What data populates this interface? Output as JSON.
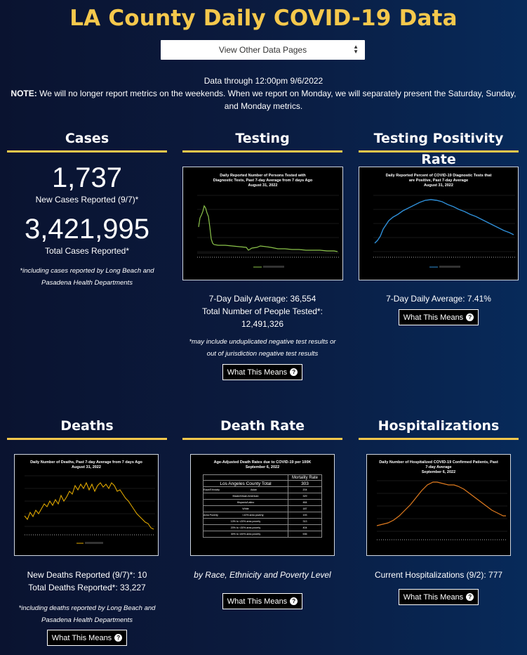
{
  "header": {
    "title": "LA County Daily COVID-19 Data",
    "select_value": "View Other Data Pages",
    "data_through": "Data through 12:00pm 9/6/2022",
    "note_label": "NOTE:",
    "note_text": " We will no longer report metrics on the weekends. When we report on Monday, we will separately present the Saturday, Sunday,",
    "note_text2": "and Monday metrics."
  },
  "cases": {
    "heading": "Cases",
    "new_value": "1,737",
    "new_label": "New Cases Reported (9/7)*",
    "total_value": "3,421,995",
    "total_label": "Total Cases Reported*",
    "footnote": "*including cases reported by Long Beach and Pasadena Health Departments"
  },
  "testing": {
    "heading": "Testing",
    "chart_title": "Daily Reported Number of Persons Tested with Diagnostic Tests, Past 7-day Average from 7 days Ago",
    "chart_date": "August 31, 2022",
    "avg": "7-Day Daily Average: 36,554",
    "total_label": "Total Number of People Tested*:",
    "total_value": "12,491,326",
    "footnote": "*may include unduplicated negative test results or out of jurisdiction negative test results",
    "button": "What This Means"
  },
  "positivity": {
    "heading": "Testing Positivity Rate",
    "chart_title": "Daily Reported Percent of COVID-19 Diagnostic Tests that are Positive, Past 7-day Average",
    "chart_date": "August 31, 2022",
    "avg": "7-Day Daily Average: 7.41%",
    "button": "What This Means"
  },
  "deaths": {
    "heading": "Deaths",
    "chart_title": "Daily Number of Deaths, Past 7-day Average from 7 days Ago",
    "chart_date": "August 31, 2022",
    "new": "New Deaths Reported (9/7)*: 10",
    "total": "Total Deaths Reported*: 33,227",
    "footnote": "*including deaths reported by Long Beach and Pasadena Health Departments",
    "button": "What This Means"
  },
  "deathrate": {
    "heading": "Death Rate",
    "chart_title": "Age-Adjusted Death Rates due to COVID-19 per 100K",
    "chart_date": "September 6, 2022",
    "table_header": "Mortality Rate",
    "total_label": "Los Angeles County Total",
    "total_value": "303",
    "group1": "Race/Ethnicity",
    "group2": "Area Poverty",
    "rows": [
      {
        "label": "Asian",
        "value": "204"
      },
      {
        "label": "Black/African American",
        "value": "329"
      },
      {
        "label": "Hispanic/Latino",
        "value": "464"
      },
      {
        "label": "White",
        "value": "187"
      },
      {
        "label": "<10% area poverty",
        "value": "193"
      },
      {
        "label": "10% to <20% area poverty",
        "value": "313"
      },
      {
        "label": "20% to <30% area poverty",
        "value": "404"
      },
      {
        "label": "30% to 100% area poverty",
        "value": "536"
      }
    ],
    "caption": "by Race, Ethnicity and Poverty Level",
    "button": "What This Means"
  },
  "hosp": {
    "heading": "Hospitalizations",
    "chart_title": "Daily Number of Hospitalized COVID-19 Confirmed Patients, Past 7-day Average",
    "chart_date": "September 6, 2022",
    "current": "Current Hospitalizations (9/2): 777",
    "button": "What This Means"
  },
  "colors": {
    "accent": "#f5c84c",
    "testing_line": "#8bc34a",
    "positivity_line": "#2f8fd8",
    "deaths_line": "#e0a800",
    "hosp_line": "#e07b1f"
  },
  "icons": {
    "question": "question-circle-icon",
    "select": "chevron-updown-icon"
  }
}
